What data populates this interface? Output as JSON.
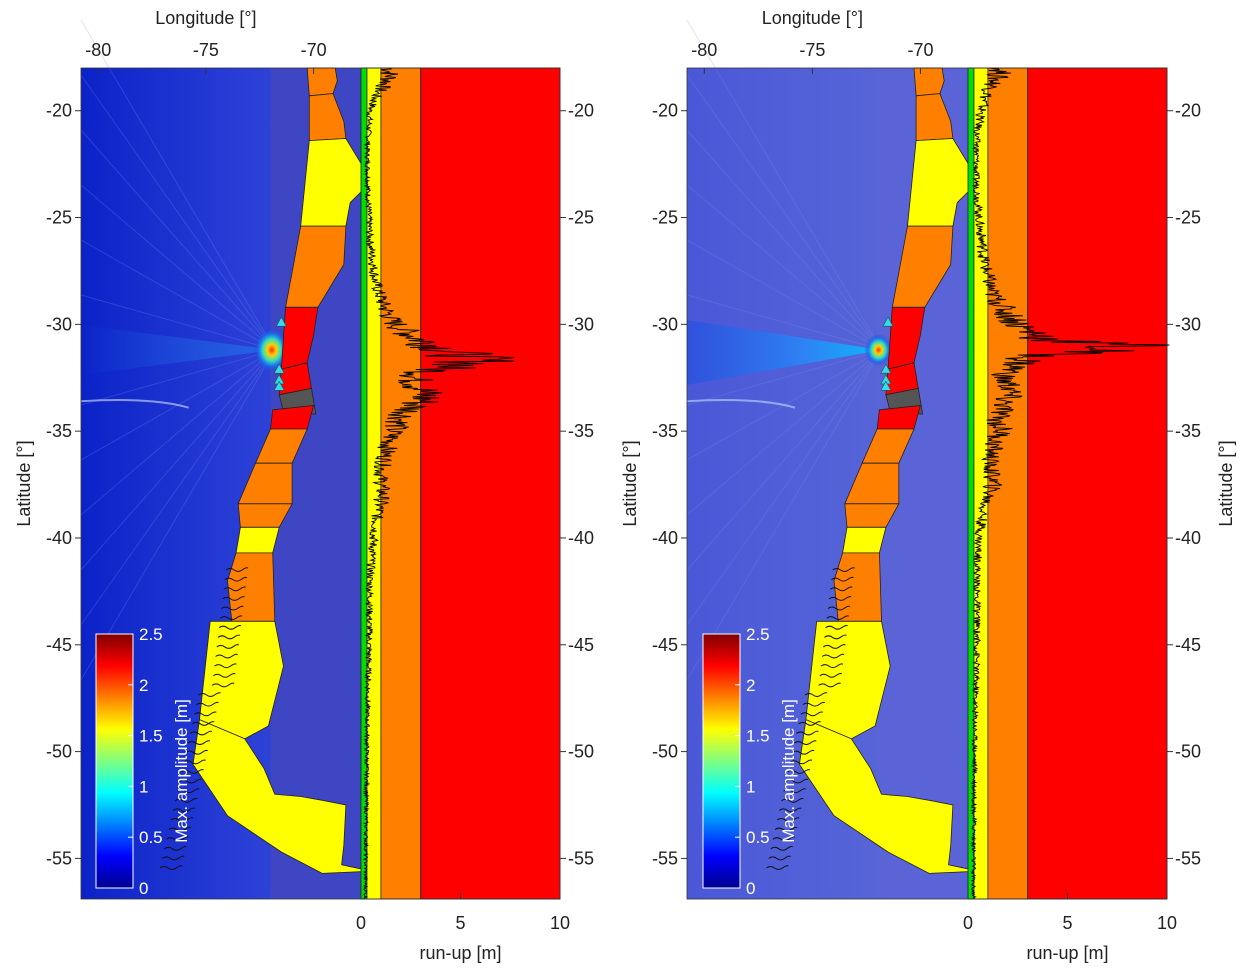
{
  "figure": {
    "panels": [
      "left",
      "right"
    ]
  },
  "colors": {
    "ocean_low": "#0a2fd6",
    "ocean_mid": "#3a4ed0",
    "ocean_flat": "#3f46c4",
    "ocean_flat_right": "#5b64d6",
    "land_red": "#ff0000",
    "land_orange": "#ff8000",
    "land_yellow": "#ffff00",
    "land_gray": "#555555",
    "station": "#33dde6",
    "band_green": "#00dd00",
    "band_yellow": "#ffff00",
    "band_orange": "#ff8000",
    "band_red": "#ff0000"
  },
  "chart_data": [
    {
      "type": "heatmap",
      "panel": "left",
      "xlabel": "Longitude [°]",
      "ylabel": "Latitude [°]",
      "xticks": [
        "-80",
        "-75",
        "-70"
      ],
      "xlim": [
        -80.8,
        -67.8
      ],
      "yticks_left": [
        "-20",
        "-25",
        "-30",
        "-35",
        "-40",
        "-45",
        "-50",
        "-55"
      ],
      "yticks_right": [
        "-20",
        "-25",
        "-30",
        "-35",
        "-40",
        "-45",
        "-50",
        "-55"
      ],
      "ylim": [
        -56.9,
        -18
      ],
      "colorbar": {
        "label": "Max. amplitude [m]",
        "ticks": [
          "0",
          "0.5",
          "1",
          "1.5",
          "2",
          "2.5"
        ],
        "range": [
          0,
          2.5
        ]
      },
      "stations_lat": [
        -29.9,
        -32.1,
        -32.6,
        -32.9
      ],
      "runup": {
        "xlabel": "run-up [m]",
        "xticks": [
          "0",
          "5",
          "10"
        ],
        "xlim": [
          0,
          10
        ],
        "hazard_bands_m": [
          0,
          0.3,
          1,
          3,
          10
        ],
        "profile": [
          [
            -18.5,
            1.6
          ],
          [
            -19.2,
            0.9
          ],
          [
            -20,
            0.5
          ],
          [
            -22,
            0.35
          ],
          [
            -24,
            0.4
          ],
          [
            -26,
            0.5
          ],
          [
            -28,
            0.8
          ],
          [
            -29,
            1.2
          ],
          [
            -29.8,
            1.7
          ],
          [
            -30.3,
            2.4
          ],
          [
            -30.8,
            3.5
          ],
          [
            -31.3,
            5.2
          ],
          [
            -31.6,
            6.3
          ],
          [
            -31.8,
            6.6
          ],
          [
            -32.1,
            4.3
          ],
          [
            -32.5,
            2.9
          ],
          [
            -33,
            3.4
          ],
          [
            -33.5,
            3.6
          ],
          [
            -34,
            2.7
          ],
          [
            -34.5,
            2.2
          ],
          [
            -35,
            1.8
          ],
          [
            -35.5,
            1.6
          ],
          [
            -36,
            1.4
          ],
          [
            -37,
            1.1
          ],
          [
            -38,
            1.2
          ],
          [
            -39,
            0.9
          ],
          [
            -40,
            0.7
          ],
          [
            -42,
            0.5
          ],
          [
            -45,
            0.45
          ],
          [
            -48,
            0.35
          ],
          [
            -52,
            0.3
          ],
          [
            -56,
            0.25
          ]
        ]
      }
    },
    {
      "type": "heatmap",
      "panel": "right",
      "xlabel": "Longitude [°]",
      "ylabel": "Latitude [°]",
      "xticks": [
        "-80",
        "-75",
        "-70"
      ],
      "xlim": [
        -80.8,
        -67.8
      ],
      "yticks_left": [
        "-20",
        "-25",
        "-30",
        "-35",
        "-40",
        "-45",
        "-50",
        "-55"
      ],
      "yticks_right": [
        "-20",
        "-25",
        "-30",
        "-35",
        "-40",
        "-45",
        "-50",
        "-55"
      ],
      "ylim": [
        -56.9,
        -18
      ],
      "colorbar": {
        "label": "Max. amplitude [m]",
        "ticks": [
          "0",
          "0.5",
          "1",
          "1.5",
          "2",
          "2.5"
        ],
        "range": [
          0,
          2.5
        ]
      },
      "stations_lat": [
        -29.9,
        -32.1,
        -32.6,
        -32.9
      ],
      "runup": {
        "xlabel": "run-up [m]",
        "xticks": [
          "0",
          "5",
          "10"
        ],
        "xlim": [
          0,
          10
        ],
        "hazard_bands_m": [
          0,
          0.3,
          1,
          3,
          10
        ],
        "profile": [
          [
            -18.2,
            1.8
          ],
          [
            -19.5,
            0.9
          ],
          [
            -21,
            0.5
          ],
          [
            -23,
            0.45
          ],
          [
            -25,
            0.6
          ],
          [
            -27,
            0.9
          ],
          [
            -28.5,
            1.3
          ],
          [
            -29.5,
            2.2
          ],
          [
            -30.2,
            3.1
          ],
          [
            -30.7,
            4.5
          ],
          [
            -31.0,
            9.0
          ],
          [
            -31.2,
            7.5
          ],
          [
            -31.5,
            3.5
          ],
          [
            -32,
            2.6
          ],
          [
            -32.5,
            1.9
          ],
          [
            -33,
            2.4
          ],
          [
            -33.5,
            2.1
          ],
          [
            -34,
            1.9
          ],
          [
            -34.5,
            1.6
          ],
          [
            -35,
            1.9
          ],
          [
            -35.5,
            1.5
          ],
          [
            -36.5,
            1.2
          ],
          [
            -37.5,
            1.4
          ],
          [
            -38.5,
            0.9
          ],
          [
            -40,
            0.6
          ],
          [
            -42,
            0.5
          ],
          [
            -45,
            0.5
          ],
          [
            -48,
            0.4
          ],
          [
            -52,
            0.35
          ],
          [
            -56,
            0.3
          ]
        ]
      }
    }
  ]
}
